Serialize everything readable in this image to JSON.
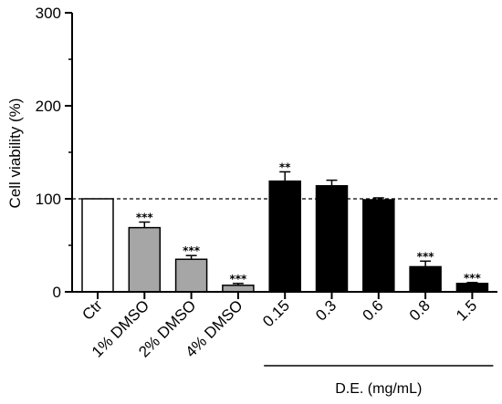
{
  "chart_data": {
    "type": "bar",
    "ylabel": "Cell viability (%)",
    "ylim": [
      0,
      300
    ],
    "yticks": [
      0,
      100,
      200,
      300
    ],
    "reference_line": 100,
    "categories": [
      "Ctr",
      "1% DMSO",
      "2% DMSO",
      "4% DMSO",
      "0.15",
      "0.3",
      "0.6",
      "0.8",
      "1.5"
    ],
    "values": [
      100,
      69,
      35,
      7,
      119,
      114,
      99,
      27,
      9
    ],
    "errors": [
      0,
      6,
      4,
      2,
      10,
      6,
      2,
      6,
      1
    ],
    "significance": [
      "",
      "***",
      "***",
      "***",
      "**",
      "",
      "",
      "***",
      "***"
    ],
    "bar_colors": [
      "#ffffff",
      "#a6a6a6",
      "#a6a6a6",
      "#a6a6a6",
      "#000000",
      "#000000",
      "#000000",
      "#000000",
      "#000000"
    ],
    "group": {
      "label": "D.E. (mg/mL)",
      "from_category": 4,
      "to_category": 8
    }
  }
}
